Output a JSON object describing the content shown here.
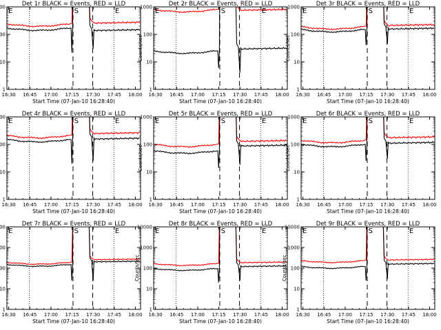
{
  "figure": {
    "xlabel": "Start Time (07-Jan-10 16:28:40)",
    "ylabel": "Counts/sec",
    "xticks": [
      "16:30",
      "16:45",
      "17:00",
      "17:15",
      "17:30",
      "17:45",
      "18:00"
    ],
    "markers": [
      "E",
      "S",
      "E"
    ],
    "colors": {
      "events": "#000000",
      "lld": "#ff0000",
      "frame": "#000000",
      "background": "#ffffff"
    }
  },
  "chart_data": [
    {
      "type": "line",
      "title": "Det 1r BLACK = Events, RED = LLD",
      "x_range_min": [
        0,
        95
      ],
      "xtick_min": [
        1.3,
        16.3,
        31.3,
        46.3,
        61.3,
        76.3,
        91.3
      ],
      "y_log": true,
      "ylim": [
        1,
        1000
      ],
      "yticks": [
        "1",
        "10",
        "100",
        "1000"
      ],
      "marker_times_min": [
        1,
        47,
        61,
        76
      ],
      "dashed_lines_min": [
        47,
        61
      ],
      "dotted_lines_min": [
        16,
        76
      ],
      "series": [
        {
          "name": "Events",
          "pre": 170,
          "post": 150,
          "dips": [
            22,
            30
          ]
        },
        {
          "name": "LLD",
          "pre": 240,
          "post": 280
        }
      ]
    },
    {
      "type": "line",
      "title": "Det 2r BLACK = Events, RED = LLD",
      "x_range_min": [
        0,
        95
      ],
      "xtick_min": [
        1.3,
        16.3,
        31.3,
        46.3,
        61.3,
        76.3,
        91.3
      ],
      "y_log": true,
      "ylim": [
        1,
        1000
      ],
      "yticks": [
        "1",
        "10",
        "100",
        "1000"
      ],
      "marker_times_min": [
        1,
        47,
        61,
        76
      ],
      "dashed_lines_min": [
        47,
        61
      ],
      "dotted_lines_min": [
        16,
        76
      ],
      "series": [
        {
          "name": "Events",
          "pre": 25,
          "post": 32,
          "dips": [
            6,
            4
          ]
        },
        {
          "name": "LLD",
          "pre": 800,
          "post": 820
        }
      ]
    },
    {
      "type": "line",
      "title": "Det 3r BLACK = Events, RED = LLD",
      "x_range_min": [
        0,
        95
      ],
      "xtick_min": [
        1.3,
        16.3,
        31.3,
        46.3,
        61.3,
        76.3,
        91.3
      ],
      "y_log": true,
      "ylim": [
        1,
        1000
      ],
      "yticks": [
        "1",
        "10",
        "100",
        "1000"
      ],
      "marker_times_min": [
        1,
        47,
        61,
        76
      ],
      "dashed_lines_min": [
        47,
        61
      ],
      "dotted_lines_min": [
        16,
        76
      ],
      "series": [
        {
          "name": "Events",
          "pre": 150,
          "post": 170,
          "dips": [
            40,
            45
          ]
        },
        {
          "name": "LLD",
          "pre": 190,
          "post": 230
        }
      ]
    },
    {
      "type": "line",
      "title": "Det 4r BLACK = Events, RED = LLD",
      "x_range_min": [
        0,
        95
      ],
      "xtick_min": [
        1.3,
        16.3,
        31.3,
        46.3,
        61.3,
        76.3,
        91.3
      ],
      "y_log": true,
      "ylim": [
        1,
        1000
      ],
      "yticks": [
        "1",
        "10",
        "100",
        "1000"
      ],
      "marker_times_min": [
        1,
        47,
        61,
        76
      ],
      "dashed_lines_min": [
        47,
        61
      ],
      "dotted_lines_min": [
        16,
        76
      ],
      "series": [
        {
          "name": "Events",
          "pre": 150,
          "post": 170,
          "dips": [
            20,
            25
          ]
        },
        {
          "name": "LLD",
          "pre": 210,
          "post": 270
        }
      ]
    },
    {
      "type": "line",
      "title": "Det 5r BLACK = Events, RED = LLD",
      "x_range_min": [
        0,
        95
      ],
      "xtick_min": [
        1.3,
        16.3,
        31.3,
        46.3,
        61.3,
        76.3,
        91.3
      ],
      "y_log": true,
      "ylim": [
        1,
        1000
      ],
      "yticks": [
        "1",
        "10",
        "100",
        "1000"
      ],
      "marker_times_min": [
        1,
        47,
        61,
        76
      ],
      "dashed_lines_min": [
        47,
        61
      ],
      "dotted_lines_min": [
        16,
        76
      ],
      "series": [
        {
          "name": "Events",
          "pre": 58,
          "post": 95,
          "dips": [
            14,
            18
          ]
        },
        {
          "name": "LLD",
          "pre": 100,
          "post": 140
        }
      ]
    },
    {
      "type": "line",
      "title": "Det 6r BLACK = Events, RED = LLD",
      "x_range_min": [
        0,
        95
      ],
      "xtick_min": [
        1.3,
        16.3,
        31.3,
        46.3,
        61.3,
        76.3,
        91.3
      ],
      "y_log": true,
      "ylim": [
        1,
        1000
      ],
      "yticks": [
        "1",
        "10",
        "100",
        "1000"
      ],
      "marker_times_min": [
        1,
        47,
        61,
        76
      ],
      "dashed_lines_min": [
        47,
        61
      ],
      "dotted_lines_min": [
        16,
        76
      ],
      "series": [
        {
          "name": "Events",
          "pre": 100,
          "post": 120,
          "dips": [
            25,
            30
          ]
        },
        {
          "name": "LLD",
          "pre": 140,
          "post": 190
        }
      ]
    },
    {
      "type": "line",
      "title": "Det 7r BLACK = Events, RED = LLD",
      "x_range_min": [
        0,
        95
      ],
      "xtick_min": [
        1.3,
        16.3,
        31.3,
        46.3,
        61.3,
        76.3,
        91.3
      ],
      "y_log": true,
      "ylim": [
        1,
        10000
      ],
      "yticks": [
        "1",
        "10",
        "100",
        "1000",
        "10000"
      ],
      "marker_times_min": [
        1,
        47,
        61,
        76
      ],
      "dashed_lines_min": [
        47,
        61
      ],
      "dotted_lines_min": [
        16,
        76
      ],
      "series": [
        {
          "name": "Events",
          "pre": 150,
          "post": 220,
          "dips": [
            25,
            25
          ]
        },
        {
          "name": "LLD",
          "pre": 190,
          "post": 280
        }
      ]
    },
    {
      "type": "line",
      "title": "Det 8r BLACK = Events, RED = LLD",
      "x_range_min": [
        0,
        95
      ],
      "xtick_min": [
        1.3,
        16.3,
        31.3,
        46.3,
        61.3,
        76.3,
        91.3
      ],
      "y_log": true,
      "ylim": [
        1,
        10000
      ],
      "yticks": [
        "1",
        "10",
        "100",
        "1000",
        "10000"
      ],
      "marker_times_min": [
        1,
        47,
        61,
        76
      ],
      "dashed_lines_min": [
        47,
        61
      ],
      "dotted_lines_min": [
        16,
        76
      ],
      "series": [
        {
          "name": "Events",
          "pre": 95,
          "post": 130,
          "dips": [
            20,
            25
          ]
        },
        {
          "name": "LLD",
          "pre": 165,
          "post": 200
        }
      ]
    },
    {
      "type": "line",
      "title": "Det 9r BLACK = Events, RED = LLD",
      "x_range_min": [
        0,
        95
      ],
      "xtick_min": [
        1.3,
        16.3,
        31.3,
        46.3,
        61.3,
        76.3,
        91.3
      ],
      "y_log": true,
      "ylim": [
        1,
        10000
      ],
      "yticks": [
        "1",
        "10",
        "100",
        "1000",
        "10000"
      ],
      "marker_times_min": [
        1,
        47,
        61,
        76
      ],
      "dashed_lines_min": [
        47,
        61
      ],
      "dotted_lines_min": [
        16,
        76
      ],
      "series": [
        {
          "name": "Events",
          "pre": 120,
          "post": 170,
          "dips": [
            25,
            30
          ]
        },
        {
          "name": "LLD",
          "pre": 230,
          "post": 270
        }
      ]
    }
  ]
}
